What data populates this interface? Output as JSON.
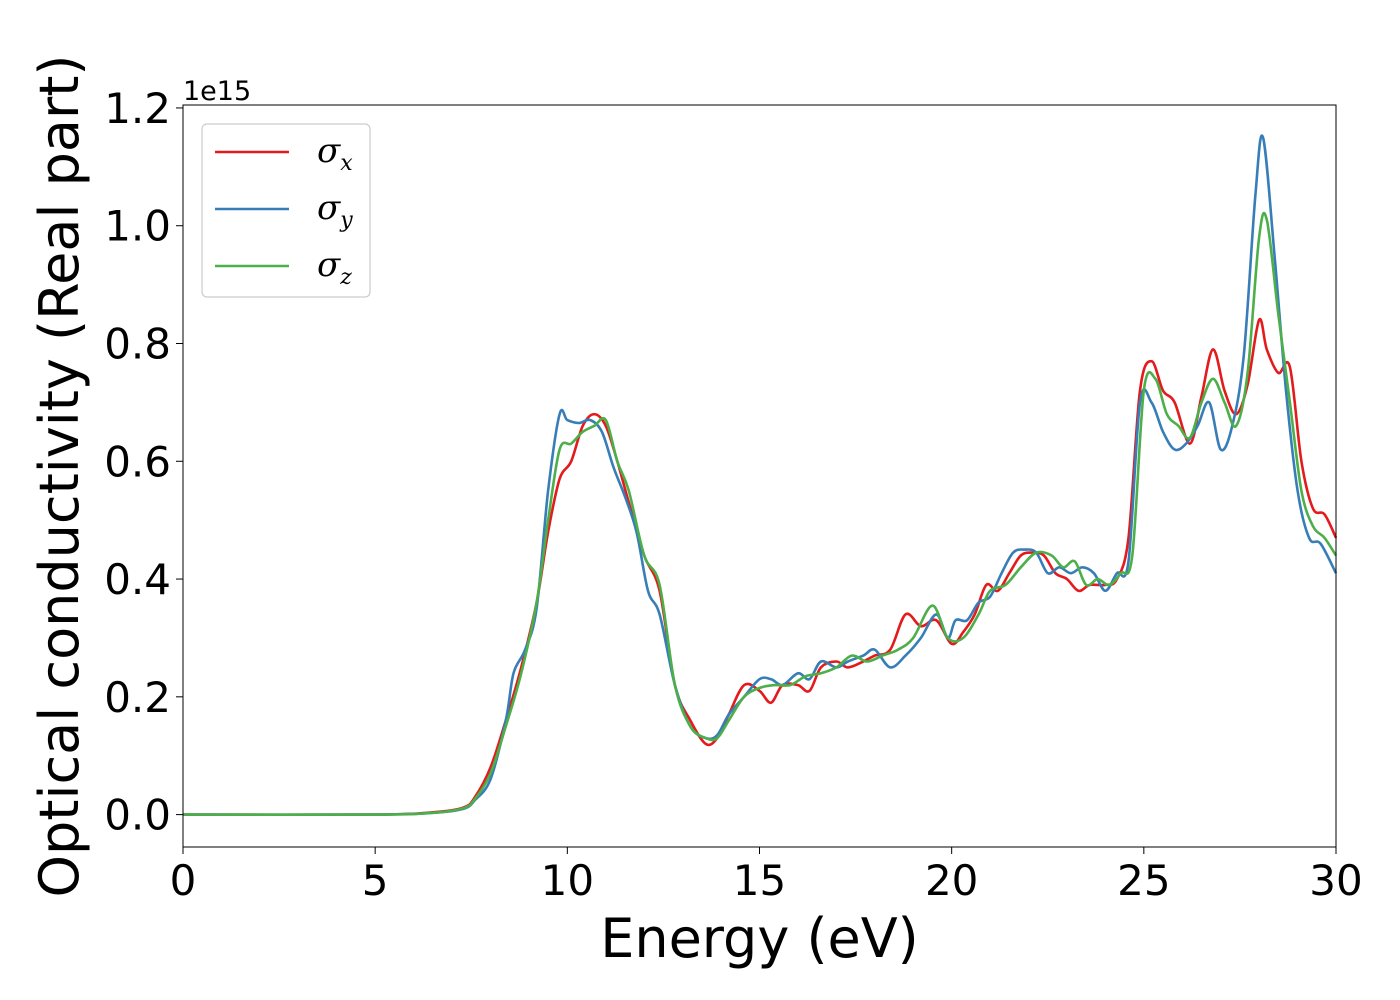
{
  "chart_data": {
    "type": "line",
    "xlabel": "Energy (eV)",
    "ylabel": "Optical conductivity (Real part)",
    "y_offset_text": "1e15",
    "xlim": [
      0,
      30
    ],
    "ylim": [
      -0.055,
      1.205
    ],
    "xticks": [
      0,
      5,
      10,
      15,
      20,
      25,
      30
    ],
    "xtick_labels": [
      "0",
      "5",
      "10",
      "15",
      "20",
      "25",
      "30"
    ],
    "yticks": [
      0.0,
      0.2,
      0.4,
      0.6,
      0.8,
      1.0,
      1.2
    ],
    "ytick_labels": [
      "0.0",
      "0.2",
      "0.4",
      "0.6",
      "0.8",
      "1.0",
      "1.2"
    ],
    "grid": false,
    "legend_position": "top-left",
    "series": [
      {
        "name": "σx",
        "legend_symbol": "σ",
        "legend_subscript": "x",
        "color": "#e41a1c",
        "x": [
          0,
          5,
          6.5,
          7.3,
          7.6,
          8.0,
          8.4,
          8.8,
          9.2,
          9.5,
          9.8,
          10.1,
          10.4,
          10.7,
          11.0,
          11.3,
          11.6,
          12.0,
          12.4,
          12.8,
          13.2,
          13.6,
          13.9,
          14.2,
          14.6,
          15.0,
          15.3,
          15.6,
          16.0,
          16.3,
          16.6,
          17.0,
          17.3,
          17.7,
          18.0,
          18.4,
          18.8,
          19.2,
          19.6,
          20.0,
          20.3,
          20.6,
          20.9,
          21.2,
          21.5,
          21.8,
          22.1,
          22.4,
          22.7,
          23.0,
          23.3,
          23.6,
          24.0,
          24.3,
          24.6,
          24.9,
          25.2,
          25.5,
          25.8,
          26.2,
          26.5,
          26.8,
          27.1,
          27.4,
          27.7,
          28.0,
          28.2,
          28.5,
          28.8,
          29.1,
          29.4,
          29.7,
          30.0
        ],
        "values": [
          0.0,
          0.0,
          0.004,
          0.012,
          0.03,
          0.08,
          0.16,
          0.25,
          0.36,
          0.48,
          0.57,
          0.6,
          0.66,
          0.68,
          0.66,
          0.6,
          0.53,
          0.44,
          0.38,
          0.22,
          0.16,
          0.12,
          0.13,
          0.17,
          0.22,
          0.21,
          0.19,
          0.22,
          0.22,
          0.21,
          0.25,
          0.26,
          0.25,
          0.26,
          0.27,
          0.28,
          0.34,
          0.32,
          0.33,
          0.29,
          0.31,
          0.34,
          0.39,
          0.38,
          0.41,
          0.44,
          0.445,
          0.44,
          0.41,
          0.4,
          0.38,
          0.39,
          0.39,
          0.4,
          0.47,
          0.72,
          0.77,
          0.72,
          0.7,
          0.63,
          0.71,
          0.79,
          0.72,
          0.68,
          0.73,
          0.84,
          0.79,
          0.75,
          0.76,
          0.6,
          0.52,
          0.51,
          0.47
        ]
      },
      {
        "name": "σy",
        "legend_symbol": "σ",
        "legend_subscript": "y",
        "color": "#377eb8",
        "x": [
          0,
          5,
          6.5,
          7.3,
          7.6,
          8.0,
          8.4,
          8.6,
          8.9,
          9.2,
          9.5,
          9.8,
          10.0,
          10.3,
          10.6,
          10.9,
          11.2,
          11.5,
          11.8,
          12.1,
          12.4,
          12.8,
          13.2,
          13.6,
          13.9,
          14.2,
          14.6,
          15.0,
          15.3,
          15.6,
          16.0,
          16.3,
          16.6,
          17.0,
          17.3,
          17.7,
          18.0,
          18.4,
          18.8,
          19.2,
          19.6,
          19.9,
          20.1,
          20.4,
          20.7,
          21.0,
          21.3,
          21.6,
          21.9,
          22.2,
          22.5,
          22.8,
          23.1,
          23.4,
          23.7,
          24.0,
          24.3,
          24.6,
          24.9,
          25.2,
          25.5,
          25.8,
          26.1,
          26.4,
          26.7,
          27.0,
          27.3,
          27.6,
          27.9,
          28.1,
          28.4,
          28.7,
          29.0,
          29.3,
          29.6,
          30.0
        ],
        "values": [
          0.0,
          0.0,
          0.003,
          0.01,
          0.025,
          0.06,
          0.16,
          0.24,
          0.28,
          0.35,
          0.55,
          0.68,
          0.67,
          0.665,
          0.67,
          0.65,
          0.59,
          0.54,
          0.48,
          0.38,
          0.34,
          0.22,
          0.15,
          0.13,
          0.135,
          0.17,
          0.2,
          0.23,
          0.23,
          0.22,
          0.24,
          0.23,
          0.26,
          0.25,
          0.26,
          0.27,
          0.28,
          0.25,
          0.27,
          0.3,
          0.34,
          0.3,
          0.33,
          0.33,
          0.36,
          0.37,
          0.41,
          0.445,
          0.45,
          0.445,
          0.41,
          0.42,
          0.41,
          0.42,
          0.41,
          0.38,
          0.41,
          0.43,
          0.7,
          0.7,
          0.65,
          0.62,
          0.63,
          0.66,
          0.7,
          0.62,
          0.66,
          0.78,
          1.05,
          1.15,
          0.95,
          0.72,
          0.55,
          0.47,
          0.46,
          0.41
        ]
      },
      {
        "name": "σz",
        "legend_symbol": "σ",
        "legend_subscript": "z",
        "color": "#4daf4a",
        "x": [
          0,
          5,
          6.5,
          7.3,
          7.6,
          8.0,
          8.4,
          8.8,
          9.2,
          9.5,
          9.8,
          10.1,
          10.4,
          10.7,
          11.0,
          11.3,
          11.6,
          12.0,
          12.4,
          12.8,
          13.2,
          13.6,
          13.9,
          14.2,
          14.6,
          15.0,
          15.4,
          15.8,
          16.2,
          16.6,
          17.0,
          17.4,
          17.8,
          18.2,
          18.6,
          19.0,
          19.5,
          19.9,
          20.3,
          20.7,
          21.0,
          21.4,
          21.8,
          22.2,
          22.6,
          22.9,
          23.2,
          23.5,
          23.8,
          24.1,
          24.4,
          24.7,
          25.0,
          25.3,
          25.6,
          25.9,
          26.2,
          26.5,
          26.8,
          27.1,
          27.4,
          27.7,
          28.0,
          28.2,
          28.5,
          28.8,
          29.1,
          29.4,
          29.7,
          30.0
        ],
        "values": [
          0.0,
          0.0,
          0.003,
          0.011,
          0.027,
          0.07,
          0.15,
          0.24,
          0.36,
          0.5,
          0.62,
          0.63,
          0.65,
          0.66,
          0.67,
          0.6,
          0.55,
          0.44,
          0.39,
          0.22,
          0.15,
          0.13,
          0.13,
          0.16,
          0.2,
          0.215,
          0.22,
          0.22,
          0.235,
          0.24,
          0.25,
          0.27,
          0.26,
          0.27,
          0.28,
          0.3,
          0.355,
          0.3,
          0.3,
          0.34,
          0.38,
          0.39,
          0.42,
          0.445,
          0.44,
          0.42,
          0.43,
          0.39,
          0.4,
          0.39,
          0.41,
          0.44,
          0.72,
          0.74,
          0.68,
          0.66,
          0.64,
          0.7,
          0.74,
          0.7,
          0.66,
          0.75,
          0.98,
          1.01,
          0.85,
          0.7,
          0.55,
          0.49,
          0.47,
          0.44
        ]
      }
    ]
  }
}
